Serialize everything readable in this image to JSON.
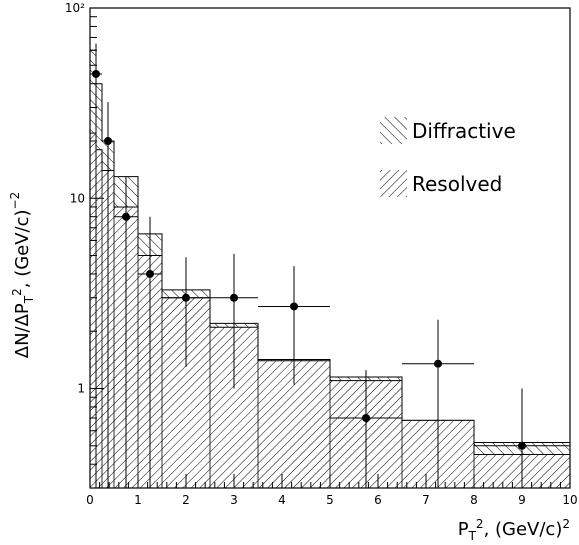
{
  "chart_data": {
    "type": "bar",
    "title": "",
    "xlabel": "P_T², (GeV/c)²",
    "ylabel": "ΔN/ΔP_T², (GeV/c)⁻²",
    "xlim": [
      0,
      10
    ],
    "ylim": [
      0.3,
      100
    ],
    "yscale": "log",
    "grid": false,
    "legend_position": "top-right",
    "x_ticks": [
      0,
      1,
      2,
      3,
      4,
      5,
      6,
      7,
      8,
      9,
      10
    ],
    "x_tick_labels": [
      "0",
      "1",
      "2",
      "3",
      "4",
      "5",
      "6",
      "7",
      "8",
      "9",
      "10"
    ],
    "y_ticks": [
      1,
      10,
      100
    ],
    "y_tick_labels": [
      "1",
      "10",
      "10²"
    ],
    "bin_edges": [
      0,
      0.125,
      0.25,
      0.5,
      1.0,
      1.5,
      2.5,
      3.5,
      5.0,
      6.5,
      8.0,
      10.0
    ],
    "series": [
      {
        "name": "Resolved",
        "values": [
          22,
          18,
          14,
          9,
          5,
          3.0,
          2.1,
          1.4,
          1.1,
          0.68,
          0.45
        ]
      },
      {
        "name": "Diffractive",
        "values": [
          60,
          40,
          20,
          13,
          6.5,
          3.3,
          2.2,
          1.42,
          1.15,
          0.68,
          0.52
        ]
      }
    ],
    "data_points": {
      "x": [
        0.125,
        0.375,
        0.75,
        1.25,
        2.0,
        3.0,
        4.25,
        5.75,
        7.25,
        9.0
      ],
      "y": [
        45,
        20,
        8.0,
        4.0,
        3.0,
        3.0,
        2.7,
        0.7,
        1.35,
        0.5
      ],
      "x_err": [
        0.125,
        0.125,
        0.25,
        0.25,
        0.5,
        0.5,
        0.75,
        0.75,
        0.75,
        1.0
      ],
      "y_low": [
        0.3,
        0.3,
        0.3,
        0.3,
        1.3,
        1.0,
        1.05,
        0.3,
        0.3,
        0.3
      ],
      "y_high": [
        65,
        32,
        13,
        8.0,
        4.9,
        5.1,
        4.4,
        1.25,
        2.3,
        1.0
      ]
    }
  },
  "legend": {
    "diffractive_label": "Diffractive",
    "resolved_label": "Resolved"
  }
}
